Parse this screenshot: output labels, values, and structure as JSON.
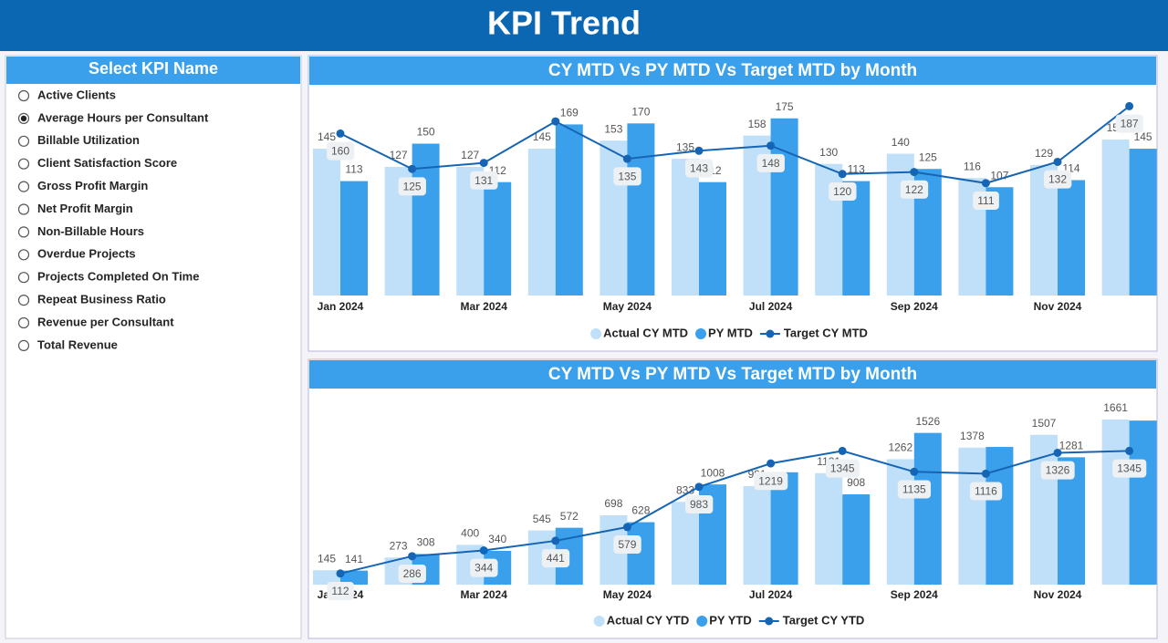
{
  "header": {
    "title": "KPI Trend"
  },
  "slicer": {
    "title": "Select KPI Name",
    "selected": 1,
    "options": [
      "Active Clients",
      "Average Hours per Consultant",
      "Billable Utilization",
      "Client Satisfaction Score",
      "Gross Profit Margin",
      "Net Profit Margin",
      "Non-Billable Hours",
      "Overdue Projects",
      "Projects Completed On Time",
      "Repeat Business Ratio",
      "Revenue per Consultant",
      "Total Revenue"
    ]
  },
  "chart_data": [
    {
      "type": "combo",
      "title": "CY MTD Vs PY MTD Vs Target MTD by Month",
      "categories": [
        "Jan 2024",
        null,
        "Mar 2024",
        null,
        "May 2024",
        null,
        "Jul 2024",
        null,
        "Sep 2024",
        null,
        "Nov 2024",
        null
      ],
      "ylim": [
        0,
        200
      ],
      "series": [
        {
          "name": "Actual CY MTD",
          "type": "bar",
          "color": "#bfe0f8",
          "values": [
            145,
            127,
            127,
            145,
            153,
            135,
            158,
            130,
            140,
            116,
            129,
            154
          ]
        },
        {
          "name": "PY MTD",
          "type": "bar",
          "color": "#3aa0ec",
          "values": [
            113,
            150,
            112,
            169,
            170,
            112,
            175,
            113,
            125,
            107,
            114,
            145
          ]
        },
        {
          "name": "Target CY MTD",
          "type": "line",
          "color": "#1565b4",
          "values": [
            160,
            125,
            131,
            172,
            135,
            143,
            148,
            120,
            122,
            111,
            132,
            187
          ],
          "value_labels": [
            "160",
            "125",
            "131",
            null,
            "135",
            "143",
            "148",
            "120",
            "122",
            "111",
            "132",
            "187"
          ]
        }
      ]
    },
    {
      "type": "combo",
      "title": "CY MTD Vs PY MTD Vs Target MTD by Month",
      "categories": [
        "Jan 2024",
        null,
        "Mar 2024",
        null,
        "May 2024",
        null,
        "Jul 2024",
        null,
        "Sep 2024",
        null,
        "Nov 2024",
        null
      ],
      "ylim": [
        0,
        2000
      ],
      "series": [
        {
          "name": "Actual CY YTD",
          "type": "bar",
          "color": "#bfe0f8",
          "values": [
            145,
            273,
            400,
            545,
            698,
            833,
            991,
            1121,
            1262,
            1378,
            1507,
            1661
          ]
        },
        {
          "name": "PY YTD",
          "type": "bar",
          "color": "#3aa0ec",
          "values": [
            141,
            308,
            340,
            572,
            628,
            1008,
            1130,
            908,
            1526,
            1385,
            1281,
            1650
          ],
          "value_labels": [
            "141",
            "308",
            "340",
            "572",
            "628",
            "1008",
            null,
            "908",
            "1526",
            null,
            "1281",
            null
          ]
        },
        {
          "name": "Target CY YTD",
          "type": "line",
          "color": "#1565b4",
          "values": [
            112,
            286,
            344,
            441,
            579,
            983,
            1219,
            1345,
            1135,
            1116,
            1326,
            1345
          ]
        }
      ]
    }
  ]
}
